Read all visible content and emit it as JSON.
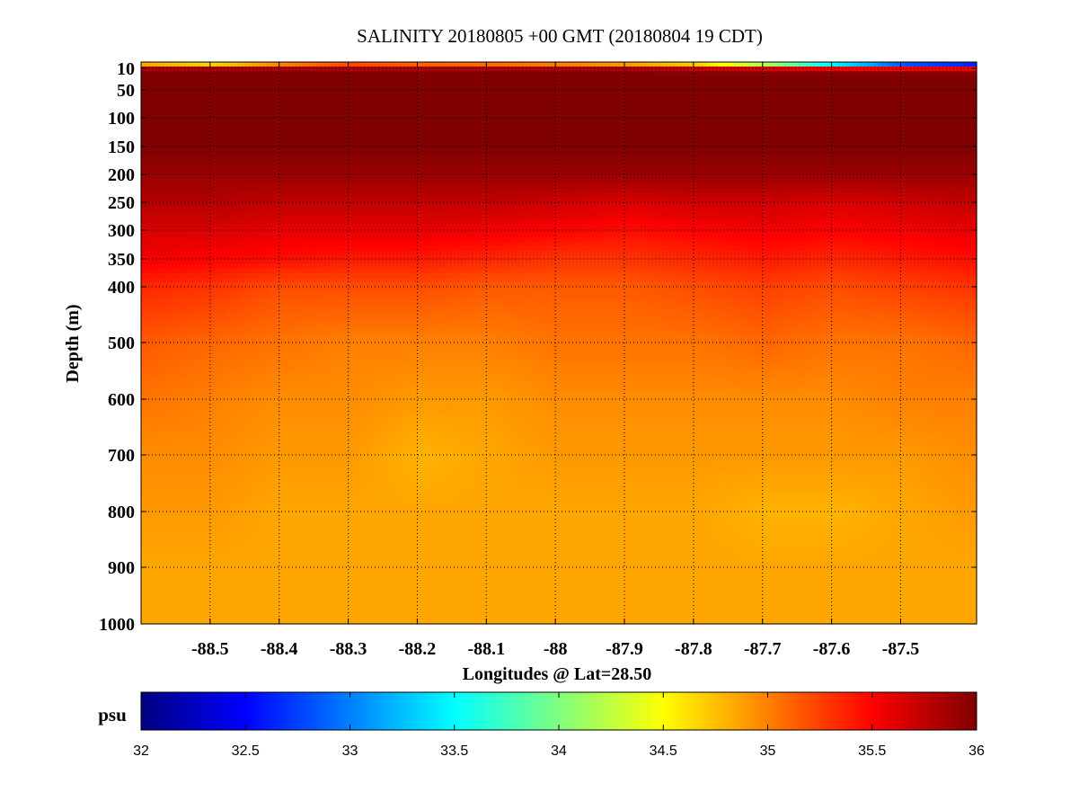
{
  "chart_data": {
    "type": "heatmap",
    "title": "SALINITY 20180805 +00 GMT (20180804 19 CDT)",
    "xlabel": "Longitudes @ Lat=28.50",
    "ylabel": "Depth (m)",
    "xlim": [
      -88.6,
      -87.39
    ],
    "ylim": [
      0,
      1000
    ],
    "y_inverted": true,
    "y_scale": "piecewise (upper 400 m stretched)",
    "grid": true,
    "grid_style": "dotted",
    "x_ticks": [
      -88.5,
      -88.4,
      -88.3,
      -88.2,
      -88.1,
      -88,
      -87.9,
      -87.8,
      -87.7,
      -87.6,
      -87.5
    ],
    "x_tick_labels": [
      "-88.5",
      "-88.4",
      "-88.3",
      "-88.2",
      "-88.1",
      "-88",
      "-87.9",
      "-87.8",
      "-87.7",
      "-87.6",
      "-87.5"
    ],
    "y_ticks": [
      10,
      50,
      100,
      150,
      200,
      250,
      300,
      350,
      400,
      500,
      600,
      700,
      800,
      900,
      1000
    ],
    "y_tick_labels": [
      "10",
      "50",
      "100",
      "150",
      "200",
      "250",
      "300",
      "350",
      "400",
      "500",
      "600",
      "700",
      "800",
      "900",
      "1000"
    ],
    "depths": [
      0,
      5,
      10,
      20,
      50,
      100,
      150,
      200,
      250,
      300,
      350,
      400,
      500,
      600,
      700,
      800,
      900,
      1000
    ],
    "longitudes": [
      -88.6,
      -88.5,
      -88.4,
      -88.3,
      -88.2,
      -88.1,
      -88.0,
      -87.9,
      -87.8,
      -87.7,
      -87.6,
      -87.5,
      -87.39
    ],
    "values": [
      [
        34.5,
        34.3,
        34.7,
        35.0,
        34.9,
        34.8,
        34.8,
        34.6,
        34.4,
        33.8,
        33.0,
        32.4,
        32.2
      ],
      [
        35.0,
        34.8,
        35.1,
        35.3,
        35.2,
        35.2,
        35.1,
        35.0,
        34.8,
        34.3,
        33.6,
        33.0,
        32.8
      ],
      [
        35.8,
        35.8,
        35.8,
        35.8,
        35.8,
        35.8,
        35.8,
        35.8,
        35.7,
        35.6,
        35.5,
        35.5,
        35.5
      ],
      [
        36.0,
        36.0,
        36.0,
        36.0,
        36.0,
        36.0,
        36.0,
        36.0,
        36.0,
        36.0,
        36.0,
        36.0,
        36.0
      ],
      [
        36.0,
        36.0,
        36.0,
        36.0,
        36.0,
        36.0,
        36.0,
        36.0,
        36.0,
        36.0,
        36.0,
        36.0,
        36.0
      ],
      [
        36.0,
        36.0,
        36.0,
        36.0,
        36.0,
        36.0,
        36.0,
        36.0,
        36.0,
        36.0,
        36.0,
        36.0,
        36.0
      ],
      [
        36.0,
        36.0,
        36.0,
        36.0,
        36.0,
        36.0,
        36.0,
        36.0,
        36.0,
        36.0,
        36.0,
        36.0,
        36.0
      ],
      [
        35.9,
        35.9,
        35.9,
        35.9,
        35.9,
        35.9,
        35.9,
        35.9,
        35.9,
        35.9,
        35.9,
        35.9,
        35.9
      ],
      [
        35.8,
        35.8,
        35.75,
        35.75,
        35.75,
        35.75,
        35.7,
        35.65,
        35.7,
        35.7,
        35.65,
        35.7,
        35.75
      ],
      [
        35.65,
        35.65,
        35.6,
        35.6,
        35.6,
        35.55,
        35.5,
        35.45,
        35.5,
        35.55,
        35.5,
        35.55,
        35.6
      ],
      [
        35.55,
        35.5,
        35.45,
        35.4,
        35.4,
        35.35,
        35.3,
        35.3,
        35.35,
        35.4,
        35.35,
        35.4,
        35.45
      ],
      [
        35.35,
        35.3,
        35.2,
        35.2,
        35.2,
        35.15,
        35.15,
        35.15,
        35.2,
        35.25,
        35.2,
        35.25,
        35.3
      ],
      [
        35.15,
        35.1,
        35.05,
        35.0,
        35.0,
        35.0,
        35.05,
        35.05,
        35.05,
        35.1,
        35.05,
        35.05,
        35.1
      ],
      [
        35.05,
        35.0,
        34.95,
        34.95,
        34.9,
        34.9,
        34.95,
        34.95,
        34.95,
        34.95,
        34.95,
        35.0,
        35.0
      ],
      [
        34.95,
        34.95,
        34.9,
        34.9,
        34.8,
        34.85,
        34.9,
        34.9,
        34.9,
        34.9,
        34.9,
        34.9,
        34.95
      ],
      [
        34.9,
        34.9,
        34.85,
        34.85,
        34.85,
        34.85,
        34.85,
        34.85,
        34.85,
        34.8,
        34.8,
        34.85,
        34.9
      ],
      [
        34.85,
        34.85,
        34.85,
        34.85,
        34.85,
        34.85,
        34.85,
        34.85,
        34.85,
        34.85,
        34.85,
        34.85,
        34.85
      ],
      [
        34.85,
        34.85,
        34.85,
        34.85,
        34.85,
        34.85,
        34.85,
        34.85,
        34.85,
        34.85,
        34.85,
        34.85,
        34.85
      ]
    ],
    "colorbar": {
      "label": "psu",
      "min": 32,
      "max": 36,
      "ticks": [
        32,
        32.5,
        33,
        33.5,
        34,
        34.5,
        35,
        35.5,
        36
      ],
      "tick_labels": [
        "32",
        "32.5",
        "33",
        "33.5",
        "34",
        "34.5",
        "35",
        "35.5",
        "36"
      ],
      "colormap": "jet",
      "colors": [
        "#00008f",
        "#0000ff",
        "#00ffff",
        "#ffff00",
        "#ff0000",
        "#800000"
      ]
    }
  }
}
